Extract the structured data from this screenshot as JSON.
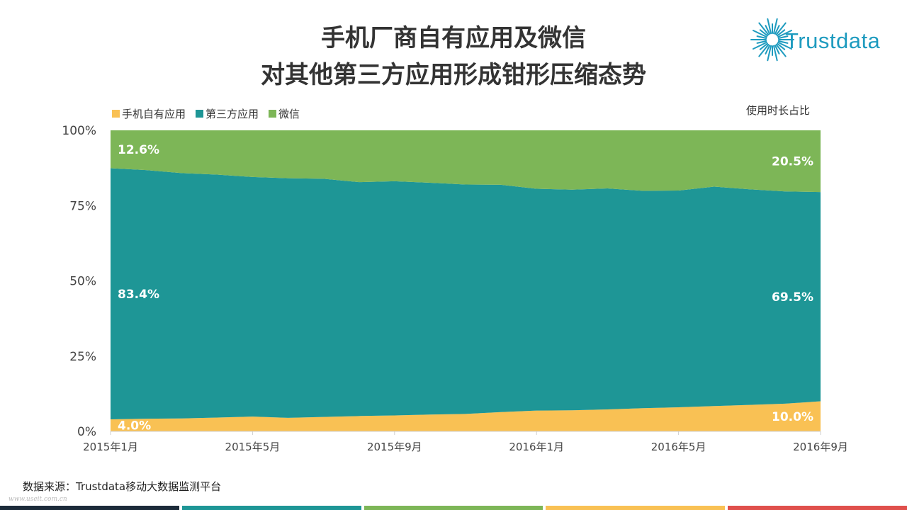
{
  "header": {
    "title_line1": "手机厂商自有应用及微信",
    "title_line2": "对其他第三方应用形成钳形压缩态势",
    "logo_text": "Trustdata"
  },
  "unit_label": "使用时长占比",
  "source": "数据来源：Trustdata移动大数据监测平台",
  "watermark": "www.useit.com.cn",
  "colors": {
    "own_apps": "#f9c154",
    "third_party": "#1e9696",
    "wechat": "#7db657",
    "logo": "#1e9bbf",
    "footer": [
      "#1c2b3a",
      "#1e9696",
      "#7db657",
      "#f9c154",
      "#e0504c"
    ]
  },
  "chart_data": {
    "type": "area",
    "stacked": true,
    "normalized": true,
    "categories": [
      "2015年1月",
      "2015年2月",
      "2015年3月",
      "2015年4月",
      "2015年5月",
      "2015年6月",
      "2015年7月",
      "2015年8月",
      "2015年9月",
      "2015年10月",
      "2015年11月",
      "2015年12月",
      "2016年1月",
      "2016年2月",
      "2016年3月",
      "2016年4月",
      "2016年5月",
      "2016年6月",
      "2016年7月",
      "2016年8月",
      "2016年9月"
    ],
    "tick_labels": [
      "2015年1月",
      "2015年5月",
      "2015年9月",
      "2016年1月",
      "2016年5月",
      "2016年9月"
    ],
    "ytick_labels": [
      "0%",
      "25%",
      "50%",
      "75%",
      "100%"
    ],
    "ylim": [
      0,
      100
    ],
    "legend_position": "top-left",
    "series": [
      {
        "name": "手机自有应用",
        "values": [
          4.0,
          4.2,
          4.3,
          4.6,
          4.9,
          4.5,
          4.8,
          5.1,
          5.3,
          5.6,
          5.8,
          6.4,
          6.9,
          7.0,
          7.3,
          7.7,
          8.0,
          8.4,
          8.8,
          9.2,
          10.0
        ]
      },
      {
        "name": "第三方应用",
        "values": [
          83.4,
          82.6,
          81.5,
          80.7,
          79.6,
          79.6,
          79.1,
          77.7,
          77.8,
          77.0,
          76.2,
          75.5,
          73.7,
          73.3,
          73.4,
          72.2,
          72.0,
          72.9,
          71.6,
          70.5,
          69.5
        ]
      },
      {
        "name": "微信",
        "values": [
          12.6,
          13.2,
          14.2,
          14.7,
          15.5,
          15.9,
          16.1,
          17.2,
          16.9,
          17.4,
          18.0,
          18.1,
          19.4,
          19.7,
          19.3,
          20.1,
          20.0,
          18.7,
          19.6,
          20.3,
          20.5
        ]
      }
    ],
    "data_labels": [
      {
        "series": 0,
        "index": 0,
        "text": "4.0%"
      },
      {
        "series": 1,
        "index": 0,
        "text": "83.4%"
      },
      {
        "series": 2,
        "index": 0,
        "text": "12.6%"
      },
      {
        "series": 0,
        "index": 20,
        "text": "10.0%"
      },
      {
        "series": 1,
        "index": 20,
        "text": "69.5%"
      },
      {
        "series": 2,
        "index": 20,
        "text": "20.5%"
      }
    ]
  }
}
